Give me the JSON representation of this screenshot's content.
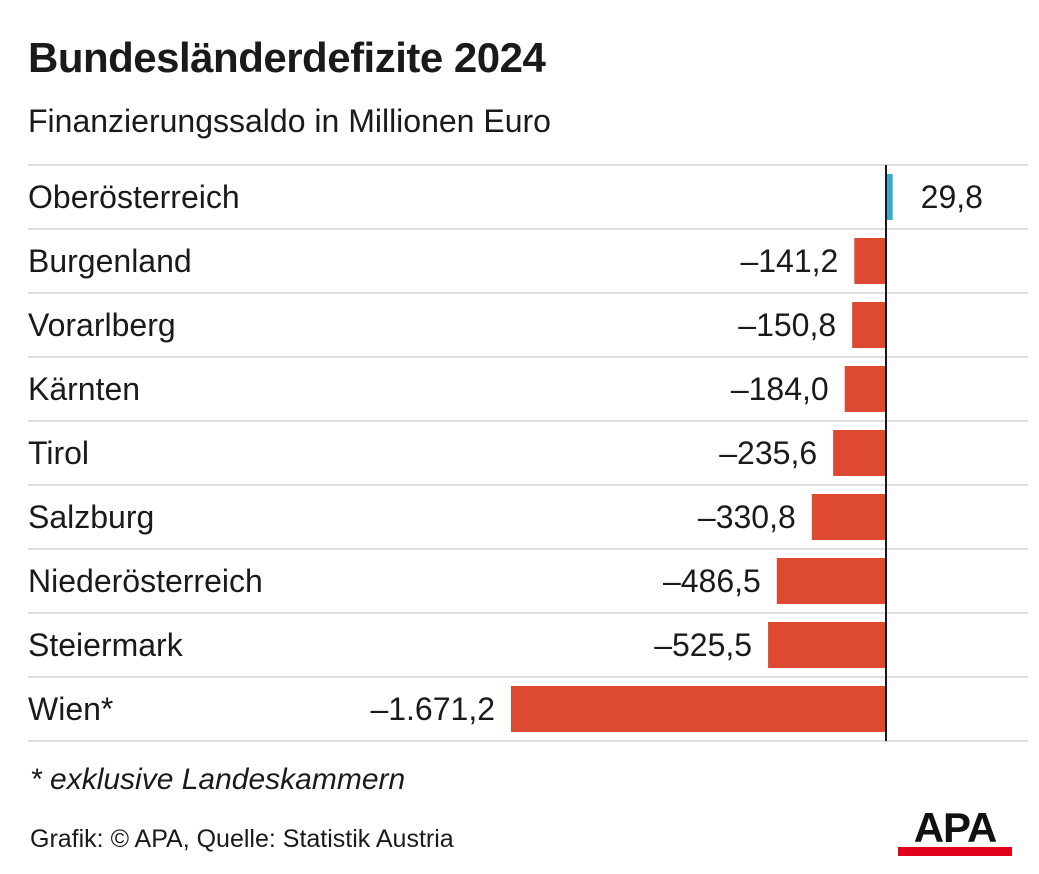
{
  "title": "Bundesländerdefizite 2024",
  "subtitle": "Finanzierungssaldo in Millionen Euro",
  "footnote": "* exklusive Landeskammern",
  "source": "Grafik: © APA, Quelle: Statistik Austria",
  "logo_text": "APA",
  "colors": {
    "positive": "#3aa8cf",
    "negative": "#dd4a31",
    "grid": "#d4d4d4",
    "axis": "#1a1a1a",
    "logo_bar": "#e2001a"
  },
  "chart_data": {
    "type": "bar",
    "orientation": "horizontal",
    "categories": [
      "Oberösterreich",
      "Burgenland",
      "Vorarlberg",
      "Kärnten",
      "Tirol",
      "Salzburg",
      "Niederösterreich",
      "Steiermark",
      "Wien*"
    ],
    "values": [
      29.8,
      -141.2,
      -150.8,
      -184.0,
      -235.6,
      -330.8,
      -486.5,
      -525.5,
      -1671.2
    ],
    "value_labels": [
      "29,8",
      "–141,2",
      "–150,8",
      "–184,0",
      "–235,6",
      "–330,8",
      "–486,5",
      "–525,5",
      "–1.671,2"
    ],
    "xlim": [
      -1671.2,
      29.8
    ],
    "grid": true
  }
}
